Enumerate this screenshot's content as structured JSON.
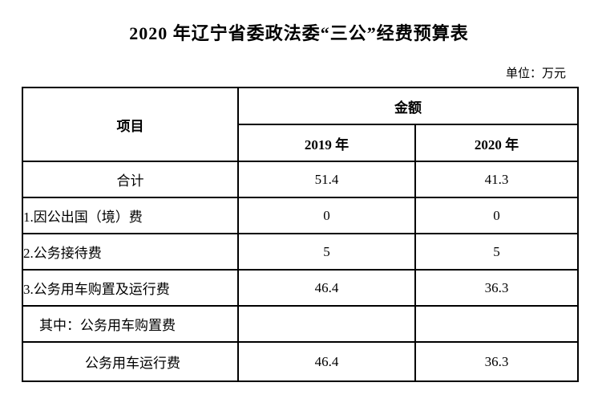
{
  "page": {
    "title": "2020 年辽宁省委政法委“三公”经费预算表",
    "unit_label": "单位：万元"
  },
  "table": {
    "header": {
      "item": "项目",
      "amount": "金额",
      "col_2019": "2019 年",
      "col_2020": "2020 年"
    },
    "rows": [
      {
        "item": "合计",
        "v2019": "51.4",
        "v2020": "41.3"
      },
      {
        "item": "1.因公出国（境）费",
        "v2019": "0",
        "v2020": "0"
      },
      {
        "item": "2.公务接待费",
        "v2019": "5",
        "v2020": "5"
      },
      {
        "item": "3.公务用车购置及运行费",
        "v2019": "46.4",
        "v2020": "36.3"
      },
      {
        "item": "其中：公务用车购置费",
        "v2019": "",
        "v2020": ""
      },
      {
        "item": "公务用车运行费",
        "v2019": "46.4",
        "v2020": "36.3"
      }
    ]
  }
}
